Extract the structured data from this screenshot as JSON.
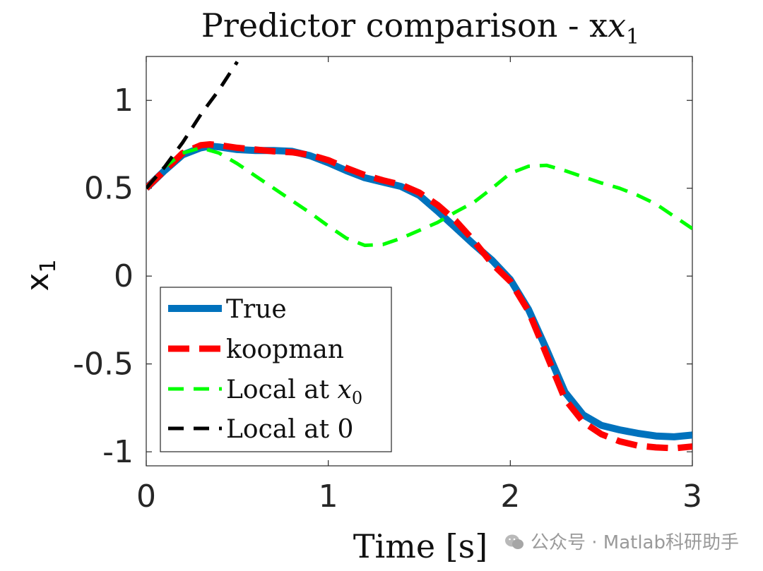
{
  "chart_data": {
    "type": "line",
    "title": "Predictor comparison - x",
    "title_subscript": "1",
    "xlabel": "Time [s]",
    "ylabel": "x",
    "ylabel_subscript": "1",
    "xlim": [
      0,
      3
    ],
    "ylim": [
      -1.08,
      1.25
    ],
    "xticks": [
      0,
      1,
      2,
      3
    ],
    "xtick_labels": [
      "0",
      "1",
      "2",
      "3"
    ],
    "yticks": [
      -1,
      -0.5,
      0,
      0.5,
      1
    ],
    "ytick_labels": [
      "-1",
      "-0.5",
      "0",
      "0.5",
      "1"
    ],
    "grid": false,
    "legend_position": "bottom-left",
    "series": [
      {
        "name": "True",
        "color": "#0072BD",
        "style": "solid",
        "x": [
          0,
          0.1,
          0.2,
          0.3,
          0.35,
          0.4,
          0.5,
          0.6,
          0.7,
          0.8,
          0.9,
          1.0,
          1.1,
          1.2,
          1.3,
          1.4,
          1.5,
          1.6,
          1.7,
          1.8,
          1.9,
          2.0,
          2.1,
          2.2,
          2.3,
          2.4,
          2.5,
          2.6,
          2.7,
          2.8,
          2.9,
          3.0
        ],
        "y": [
          0.5,
          0.6,
          0.69,
          0.73,
          0.74,
          0.735,
          0.72,
          0.715,
          0.715,
          0.71,
          0.685,
          0.645,
          0.6,
          0.56,
          0.535,
          0.51,
          0.46,
          0.37,
          0.275,
          0.18,
          0.09,
          -0.02,
          -0.19,
          -0.42,
          -0.66,
          -0.79,
          -0.85,
          -0.875,
          -0.895,
          -0.91,
          -0.915,
          -0.905
        ]
      },
      {
        "name": "koopman",
        "color": "#FF0000",
        "style": "dashed",
        "x": [
          0,
          0.1,
          0.2,
          0.3,
          0.35,
          0.4,
          0.5,
          0.6,
          0.7,
          0.8,
          0.9,
          1.0,
          1.1,
          1.2,
          1.3,
          1.4,
          1.5,
          1.6,
          1.7,
          1.8,
          1.9,
          2.0,
          2.1,
          2.2,
          2.3,
          2.4,
          2.5,
          2.6,
          2.7,
          2.8,
          2.9,
          3.0
        ],
        "y": [
          0.5,
          0.6,
          0.7,
          0.745,
          0.75,
          0.745,
          0.73,
          0.72,
          0.71,
          0.705,
          0.69,
          0.66,
          0.615,
          0.575,
          0.545,
          0.52,
          0.475,
          0.405,
          0.315,
          0.2,
          0.07,
          -0.03,
          -0.2,
          -0.45,
          -0.7,
          -0.83,
          -0.9,
          -0.94,
          -0.965,
          -0.975,
          -0.98,
          -0.97
        ]
      },
      {
        "name": "Local at x",
        "name_subscript": "0",
        "color": "#00FF00",
        "style": "dashed",
        "x": [
          0,
          0.1,
          0.2,
          0.3,
          0.4,
          0.5,
          0.6,
          0.7,
          0.8,
          0.9,
          1.0,
          1.1,
          1.2,
          1.3,
          1.4,
          1.5,
          1.6,
          1.7,
          1.8,
          1.9,
          2.0,
          2.1,
          2.2,
          2.3,
          2.4,
          2.5,
          2.6,
          2.7,
          2.8,
          2.9,
          3.0
        ],
        "y": [
          0.5,
          0.62,
          0.7,
          0.73,
          0.7,
          0.64,
          0.57,
          0.5,
          0.43,
          0.36,
          0.285,
          0.215,
          0.175,
          0.18,
          0.215,
          0.26,
          0.305,
          0.365,
          0.42,
          0.5,
          0.585,
          0.625,
          0.63,
          0.6,
          0.565,
          0.53,
          0.5,
          0.46,
          0.41,
          0.34,
          0.27
        ]
      },
      {
        "name": "Local at 0",
        "color": "#000000",
        "style": "dashed",
        "x": [
          0,
          0.1,
          0.2,
          0.3,
          0.4,
          0.5
        ],
        "y": [
          0.5,
          0.62,
          0.76,
          0.92,
          1.06,
          1.22
        ]
      }
    ]
  },
  "watermark": {
    "text": "公众号 · Matlab科研助手"
  }
}
